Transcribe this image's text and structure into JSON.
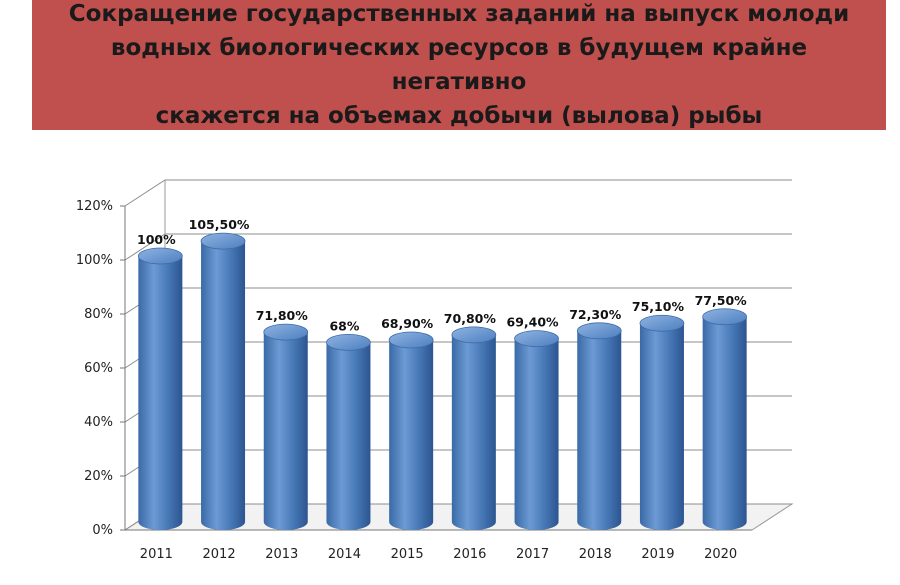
{
  "slide": {
    "title_line1": "Сокращение государственных заданий на выпуск молоди",
    "title_line2": "водных биологических ресурсов в будущем крайне негативно",
    "title_line3": "скажется на объемах добычи (вылова) рыбы"
  },
  "colors": {
    "banner": "#c0504d",
    "bar_main": "#4a7ebb",
    "bar_light": "#7fa6d8",
    "bar_dark": "#2e5a92"
  },
  "chart_data": {
    "type": "bar",
    "categories": [
      "2011",
      "2012",
      "2013",
      "2014",
      "2015",
      "2016",
      "2017",
      "2018",
      "2019",
      "2020"
    ],
    "values": [
      100,
      105.5,
      71.8,
      68,
      68.9,
      70.8,
      69.4,
      72.3,
      75.1,
      77.5
    ],
    "data_labels": [
      "100%",
      "105,50%",
      "71,80%",
      "68%",
      "68,90%",
      "70,80%",
      "69,40%",
      "72,30%",
      "75,10%",
      "77,50%"
    ],
    "y_ticks": [
      "0%",
      "20%",
      "40%",
      "60%",
      "80%",
      "100%",
      "120%"
    ],
    "ylim": [
      0,
      120
    ],
    "grid": true,
    "style": "3d-cylinder",
    "title": "",
    "xlabel": "",
    "ylabel": ""
  }
}
